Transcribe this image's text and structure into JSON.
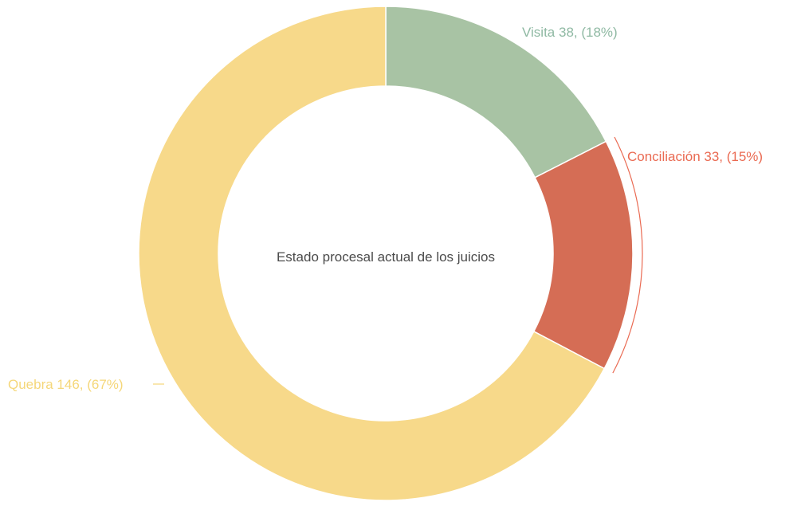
{
  "chart_data": {
    "type": "pie",
    "subtype": "donut",
    "center_label": "Estado procesal actual de los juicios",
    "slices": [
      {
        "name": "Visita",
        "value": 38,
        "percent_label": "(18%)",
        "label": "Visita 38, (18%)",
        "color": "#a8c3a4"
      },
      {
        "name": "Conciliación",
        "value": 33,
        "percent_label": "(15%)",
        "label": "Conciliación 33, (15%)",
        "color": "#d56d55"
      },
      {
        "name": "Quebra",
        "value": 146,
        "percent_label": "(67%)",
        "label": "Quebra 146, (67%)",
        "color": "#f7d98a"
      }
    ],
    "label_colors": {
      "Visita": "#8fb9a3",
      "Conciliación": "#ea6a52",
      "Quebra": "#f5d77a"
    },
    "legend": "none"
  }
}
